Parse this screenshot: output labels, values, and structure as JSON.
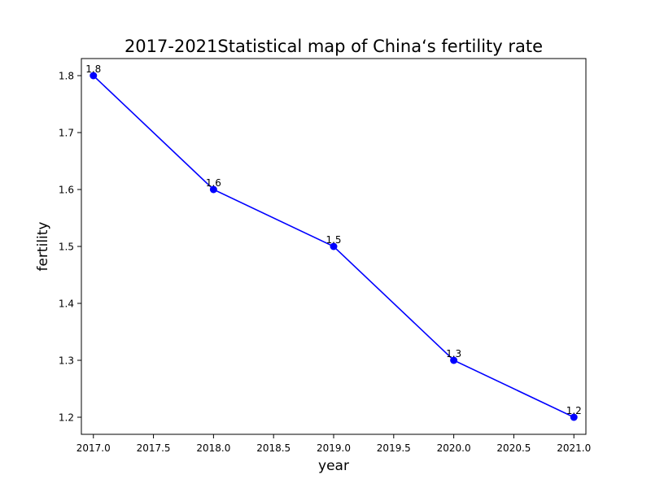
{
  "chart_data": {
    "type": "line",
    "title": "2017-2021Statistical map of China‘s fertility rate",
    "xlabel": "year",
    "ylabel": "fertility",
    "xlim": [
      2016.9,
      2021.1
    ],
    "ylim": [
      1.17,
      1.83
    ],
    "x_ticks": [
      2017.0,
      2017.5,
      2018.0,
      2018.5,
      2019.0,
      2019.5,
      2020.0,
      2020.5,
      2021.0
    ],
    "x_tick_labels": [
      "2017.0",
      "2017.5",
      "2018.0",
      "2018.5",
      "2019.0",
      "2019.5",
      "2020.0",
      "2020.5",
      "2021.0"
    ],
    "y_ticks": [
      1.2,
      1.3,
      1.4,
      1.5,
      1.6,
      1.7,
      1.8
    ],
    "y_tick_labels": [
      "1.2",
      "1.3",
      "1.4",
      "1.5",
      "1.6",
      "1.7",
      "1.8"
    ],
    "grid": false,
    "legend": "none",
    "series": [
      {
        "color": "#0000ff",
        "marker": "circle",
        "x": [
          2017,
          2018,
          2019,
          2020,
          2021
        ],
        "y": [
          1.8,
          1.6,
          1.5,
          1.3,
          1.2
        ],
        "labels": [
          "1.8",
          "1.6",
          "1.5",
          "1.3",
          "1.2"
        ]
      }
    ]
  }
}
